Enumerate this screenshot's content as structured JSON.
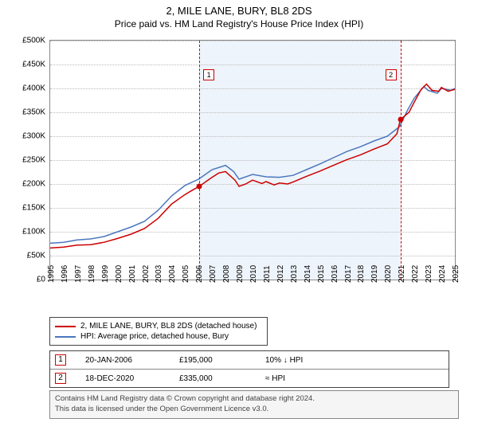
{
  "title": "2, MILE LANE, BURY, BL8 2DS",
  "subtitle": "Price paid vs. HM Land Registry's House Price Index (HPI)",
  "chart": {
    "type": "line",
    "background_color": "#ffffff",
    "grid_color": "#bbbbbb",
    "border_color": "#888888",
    "shade_color": "#eef4fb",
    "x_start_year": 1995,
    "x_end_year": 2025,
    "xtick_step": 1,
    "ylim": [
      0,
      500000
    ],
    "ytick_step": 50000,
    "ytick_prefix": "£",
    "ytick_labels": [
      "£0",
      "£50K",
      "£100K",
      "£150K",
      "£200K",
      "£250K",
      "£300K",
      "£350K",
      "£400K",
      "£450K",
      "£500K"
    ],
    "xtick_labels": [
      "1995",
      "1996",
      "1997",
      "1998",
      "1999",
      "2000",
      "2001",
      "2002",
      "2003",
      "2004",
      "2005",
      "2006",
      "2007",
      "2008",
      "2009",
      "2010",
      "2011",
      "2012",
      "2013",
      "2014",
      "2015",
      "2016",
      "2017",
      "2018",
      "2019",
      "2020",
      "2021",
      "2022",
      "2023",
      "2024",
      "2025"
    ],
    "label_fontsize": 10,
    "shade_from_year": 2006.05,
    "shade_to_year": 2020.96,
    "line_width": 1.5,
    "series": [
      {
        "name": "hpi",
        "color": "#4b77be",
        "data": [
          [
            1995.0,
            76
          ],
          [
            1996.0,
            78
          ],
          [
            1997.0,
            83
          ],
          [
            1998.0,
            85
          ],
          [
            1999.0,
            90
          ],
          [
            2000.0,
            100
          ],
          [
            2001.0,
            110
          ],
          [
            2002.0,
            122
          ],
          [
            2003.0,
            145
          ],
          [
            2004.0,
            175
          ],
          [
            2005.0,
            197
          ],
          [
            2006.0,
            210
          ],
          [
            2007.0,
            230
          ],
          [
            2008.0,
            239
          ],
          [
            2008.6,
            226
          ],
          [
            2009.0,
            210
          ],
          [
            2010.0,
            220
          ],
          [
            2011.0,
            215
          ],
          [
            2012.0,
            214
          ],
          [
            2013.0,
            218
          ],
          [
            2014.0,
            230
          ],
          [
            2015.0,
            242
          ],
          [
            2016.0,
            255
          ],
          [
            2017.0,
            268
          ],
          [
            2018.0,
            278
          ],
          [
            2019.0,
            290
          ],
          [
            2020.0,
            300
          ],
          [
            2020.9,
            320
          ],
          [
            2021.5,
            355
          ],
          [
            2022.0,
            380
          ],
          [
            2022.7,
            404
          ],
          [
            2023.0,
            396
          ],
          [
            2023.7,
            390
          ],
          [
            2024.0,
            400
          ],
          [
            2024.7,
            396
          ],
          [
            2025.0,
            400
          ]
        ]
      },
      {
        "name": "price_paid",
        "color": "#cc0000",
        "data": [
          [
            1995.0,
            66
          ],
          [
            1996.0,
            68
          ],
          [
            1997.0,
            72
          ],
          [
            1998.0,
            73
          ],
          [
            1999.0,
            78
          ],
          [
            2000.0,
            86
          ],
          [
            2001.0,
            95
          ],
          [
            2002.0,
            107
          ],
          [
            2003.0,
            128
          ],
          [
            2004.0,
            158
          ],
          [
            2005.0,
            178
          ],
          [
            2005.6,
            188
          ],
          [
            2006.05,
            195
          ],
          [
            2006.6,
            206
          ],
          [
            2007.0,
            214
          ],
          [
            2007.5,
            223
          ],
          [
            2008.0,
            226
          ],
          [
            2008.7,
            208
          ],
          [
            2009.0,
            195
          ],
          [
            2009.5,
            200
          ],
          [
            2010.0,
            208
          ],
          [
            2010.7,
            201
          ],
          [
            2011.0,
            205
          ],
          [
            2011.6,
            198
          ],
          [
            2012.0,
            202
          ],
          [
            2012.6,
            200
          ],
          [
            2013.0,
            204
          ],
          [
            2014.0,
            216
          ],
          [
            2015.0,
            227
          ],
          [
            2016.0,
            239
          ],
          [
            2017.0,
            251
          ],
          [
            2018.0,
            261
          ],
          [
            2019.0,
            273
          ],
          [
            2020.0,
            284
          ],
          [
            2020.7,
            305
          ],
          [
            2020.96,
            335
          ],
          [
            2021.6,
            350
          ],
          [
            2022.0,
            372
          ],
          [
            2022.5,
            398
          ],
          [
            2022.9,
            409
          ],
          [
            2023.3,
            396
          ],
          [
            2023.8,
            394
          ],
          [
            2024.0,
            402
          ],
          [
            2024.5,
            394
          ],
          [
            2025.0,
            398
          ]
        ]
      }
    ],
    "markers": [
      {
        "id": "1",
        "year": 2006.05,
        "value_k": 195,
        "box_top": 36
      },
      {
        "id": "2",
        "year": 2020.96,
        "value_k": 335,
        "box_top": 36
      }
    ]
  },
  "legend": {
    "items": [
      {
        "label": "2, MILE LANE, BURY, BL8 2DS (detached house)",
        "color": "#cc0000"
      },
      {
        "label": "HPI: Average price, detached house, Bury",
        "color": "#4b77be"
      }
    ]
  },
  "events": [
    {
      "id": "1",
      "date": "20-JAN-2006",
      "price": "£195,000",
      "pct": "10% ↓ HPI"
    },
    {
      "id": "2",
      "date": "18-DEC-2020",
      "price": "£335,000",
      "pct": "≈ HPI"
    }
  ],
  "footer": {
    "line1": "Contains HM Land Registry data © Crown copyright and database right 2024.",
    "line2": "This data is licensed under the Open Government Licence v3.0."
  }
}
